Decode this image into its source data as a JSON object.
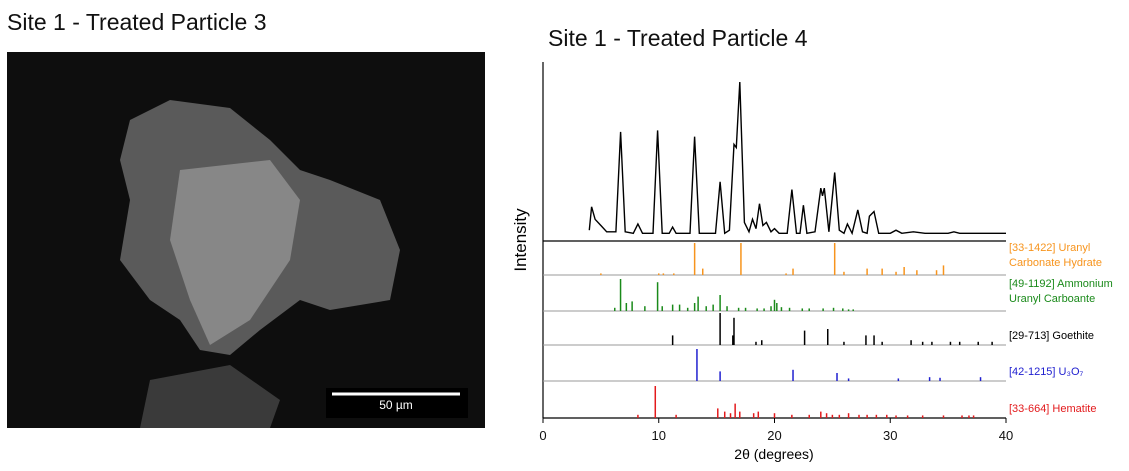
{
  "sem_panel": {
    "title": "Site 1 - Treated Particle 3",
    "scale_bar_label": "50 µm"
  },
  "chart_data": {
    "type": "line",
    "title": "Site 1 - Treated Particle 4",
    "x_label": "2θ (degrees)",
    "y_label": "Intensity",
    "color": "#000000",
    "xlim": [
      0,
      40
    ],
    "xticks": [
      0,
      10,
      20,
      30,
      40
    ],
    "ylim": [
      0,
      100
    ],
    "x": [
      4,
      4.2,
      4.5,
      5.0,
      5.5,
      6.3,
      6.7,
      7.1,
      7.8,
      8.2,
      8.6,
      9.5,
      9.9,
      10.3,
      10.9,
      11.2,
      11.5,
      12.7,
      13.1,
      13.5,
      14.9,
      15.3,
      15.7,
      16.1,
      16.5,
      16.7,
      17.0,
      17.4,
      17.8,
      18.1,
      18.4,
      18.7,
      19.0,
      19.3,
      19.7,
      20.0,
      20.4,
      21.1,
      21.5,
      21.9,
      22.2,
      22.5,
      22.8,
      23.5,
      24.0,
      24.15,
      24.3,
      24.7,
      25.2,
      25.6,
      26.0,
      26.3,
      26.7,
      27.2,
      27.6,
      28.0,
      28.2,
      28.6,
      29.0,
      30.0,
      30.5,
      31.0,
      32,
      33,
      34,
      35,
      35.5,
      36,
      37,
      38,
      39,
      40
    ],
    "values": [
      5,
      20,
      12,
      8,
      4,
      4,
      68,
      4,
      3,
      9,
      3,
      3,
      69,
      3,
      3,
      7,
      3,
      3,
      65,
      3,
      3,
      36,
      3,
      5,
      60,
      58,
      100,
      10,
      4,
      12,
      6,
      22,
      8,
      10,
      4,
      6,
      3,
      3,
      31,
      3,
      3,
      21,
      3,
      4,
      32,
      27,
      32,
      4,
      42,
      5,
      3,
      9,
      3,
      18,
      4,
      3,
      14,
      17,
      3,
      3,
      5,
      3,
      4,
      3,
      3,
      3,
      4,
      3,
      3,
      3,
      3,
      3
    ],
    "reference_patterns": [
      {
        "label": [
          "[33-1422] Uranyl",
          "Carbonate Hydrate"
        ],
        "color": "#f7941d",
        "x": [
          5.0,
          10.0,
          10.4,
          11.3,
          13.1,
          13.8,
          17.1,
          21.0,
          21.6,
          25.2,
          26.0,
          28.0,
          29.3,
          30.5,
          31.2,
          32.3,
          34.0,
          34.6
        ],
        "values": [
          5,
          5,
          5,
          5,
          100,
          20,
          100,
          5,
          20,
          100,
          10,
          20,
          20,
          10,
          25,
          15,
          15,
          30
        ]
      },
      {
        "label": [
          "[49-1192] Ammonium",
          "Uranyl Carboante"
        ],
        "color": "#1a8a1a",
        "x": [
          6.2,
          6.7,
          7.2,
          7.7,
          8.8,
          9.9,
          10.3,
          11.2,
          11.8,
          12.5,
          13.1,
          13.4,
          14.1,
          14.7,
          15.3,
          15.9,
          16.9,
          17.5,
          18.5,
          19.1,
          19.7,
          20.0,
          20.2,
          20.6,
          21.3,
          22.4,
          23.0,
          24.2,
          25.1,
          25.9,
          26.4,
          26.8
        ],
        "values": [
          10,
          100,
          25,
          30,
          15,
          90,
          15,
          20,
          20,
          10,
          25,
          45,
          15,
          20,
          50,
          15,
          10,
          10,
          8,
          8,
          15,
          35,
          25,
          12,
          10,
          8,
          8,
          8,
          10,
          8,
          5,
          5
        ]
      },
      {
        "label": [
          "[29-713] Goethite"
        ],
        "color": "#000000",
        "x": [
          11.2,
          15.3,
          16.4,
          16.5,
          18.4,
          18.9,
          22.6,
          24.6,
          26.0,
          27.9,
          28.6,
          29.3,
          31.8,
          32.8,
          33.6,
          35.2,
          36.0,
          37.6,
          38.8
        ],
        "values": [
          30,
          100,
          30,
          85,
          10,
          15,
          45,
          50,
          10,
          30,
          30,
          10,
          15,
          10,
          10,
          10,
          10,
          10,
          10
        ]
      },
      {
        "label": [
          "[42-1215] U₃O₇"
        ],
        "color": "#2020d0",
        "x": [
          13.3,
          15.3,
          21.6,
          25.4,
          26.4,
          30.7,
          33.4,
          34.3,
          37.8
        ],
        "values": [
          100,
          30,
          35,
          25,
          8,
          8,
          12,
          10,
          12
        ]
      },
      {
        "label": [
          "[33-664] Hematite"
        ],
        "color": "#e31a1c",
        "x": [
          8.2,
          9.7,
          11.5,
          15.1,
          15.7,
          16.2,
          16.6,
          17.0,
          18.2,
          18.6,
          20.0,
          21.5,
          23.0,
          24.0,
          24.5,
          25.0,
          25.6,
          26.4,
          27.3,
          28.0,
          28.8,
          29.7,
          30.5,
          31.5,
          32.8,
          34.6,
          36.2,
          36.8,
          37.2
        ],
        "values": [
          10,
          100,
          10,
          30,
          20,
          15,
          45,
          20,
          15,
          20,
          15,
          10,
          10,
          20,
          15,
          10,
          10,
          15,
          10,
          10,
          10,
          10,
          8,
          8,
          8,
          8,
          8,
          8,
          8
        ]
      }
    ]
  }
}
